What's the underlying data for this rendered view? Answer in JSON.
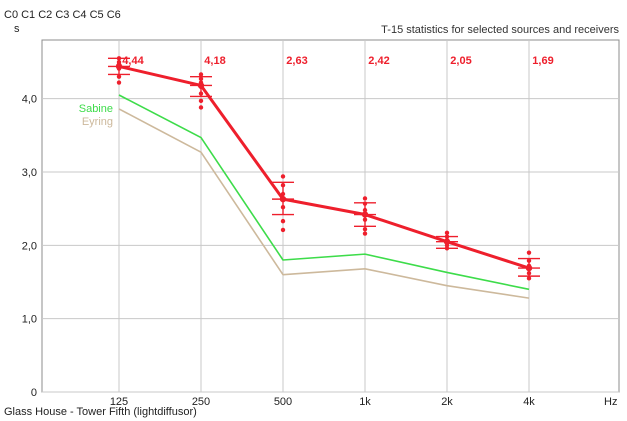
{
  "header": {
    "channels": [
      "C0",
      "C1",
      "C2",
      "C3",
      "C4",
      "C5",
      "C6"
    ],
    "y_unit": "s",
    "stats_title": "T-15 statistics for selected sources and receivers"
  },
  "footer": {
    "caption": "Glass House - Tower Fifth (lightdiffusor)",
    "x_unit": "Hz"
  },
  "colors": {
    "measured": "#ee1f2c",
    "sabine": "#3ddc4a",
    "eyring": "#cdb99c",
    "grid": "#c8c8c8",
    "frame": "#8c8c8c"
  },
  "chart_data": {
    "type": "line",
    "categories": [
      "125",
      "250",
      "500",
      "1k",
      "2k",
      "4k"
    ],
    "ylim": [
      0,
      4.8
    ],
    "yticks": [
      0,
      1.0,
      2.0,
      3.0,
      4.0
    ],
    "ytick_labels": [
      "0",
      "1,0",
      "2,0",
      "3,0",
      "4,0"
    ],
    "grid": true,
    "series": [
      {
        "name": "",
        "key": "measured",
        "values": [
          4.44,
          4.18,
          2.63,
          2.42,
          2.05,
          1.69
        ],
        "value_labels": [
          "4,44",
          "4,18",
          "2,63",
          "2,42",
          "2,05",
          "1,69"
        ],
        "error_low": [
          4.33,
          4.03,
          2.42,
          2.26,
          1.96,
          1.58
        ],
        "error_high": [
          4.55,
          4.3,
          2.86,
          2.58,
          2.12,
          1.82
        ],
        "samples": [
          [
            4.55,
            4.5,
            4.47,
            4.44,
            4.41,
            4.3,
            4.22
          ],
          [
            4.33,
            4.27,
            4.22,
            4.16,
            4.07,
            3.97,
            3.88
          ],
          [
            2.94,
            2.82,
            2.7,
            2.62,
            2.52,
            2.33,
            2.21
          ],
          [
            2.64,
            2.57,
            2.48,
            2.41,
            2.35,
            2.22,
            2.16
          ],
          [
            2.17,
            2.12,
            2.07,
            2.04,
            2.0,
            1.96
          ],
          [
            1.9,
            1.79,
            1.72,
            1.68,
            1.62,
            1.55
          ]
        ]
      },
      {
        "name": "Sabine",
        "key": "sabine",
        "values": [
          4.05,
          3.47,
          1.8,
          1.88,
          1.63,
          1.4
        ]
      },
      {
        "name": "Eyring",
        "key": "eyring",
        "values": [
          3.86,
          3.27,
          1.6,
          1.68,
          1.45,
          1.28
        ]
      }
    ]
  }
}
